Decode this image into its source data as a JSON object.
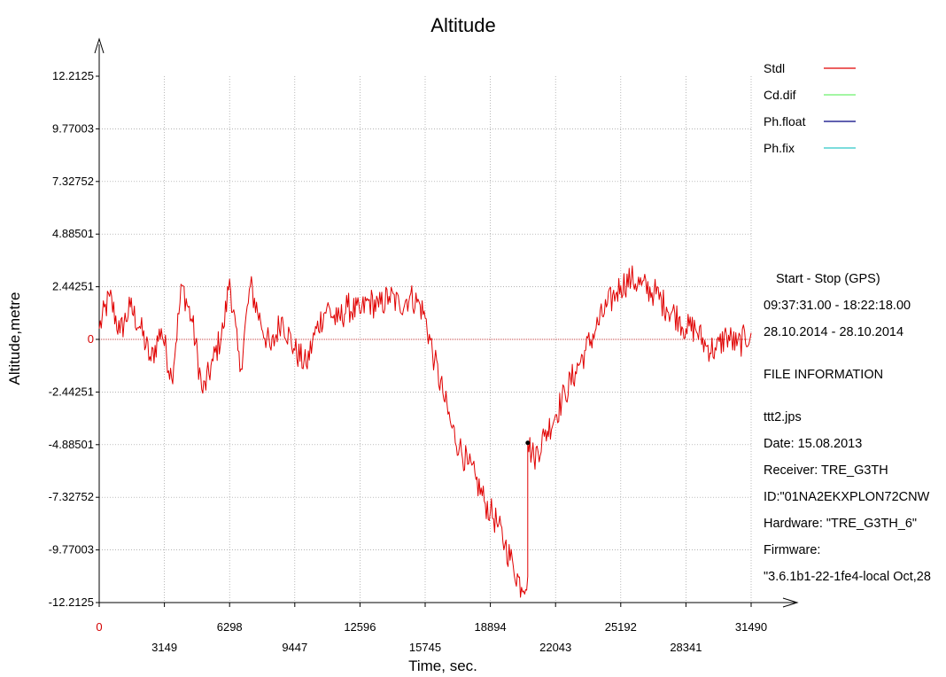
{
  "chart_data": {
    "type": "line",
    "title": "Altitude",
    "xlabel": "Time, sec.",
    "ylabel": "Altitude,metre",
    "xlim": [
      0,
      31490
    ],
    "ylim": [
      -12.2125,
      12.2125
    ],
    "x_ticks": [
      "0",
      "3149",
      "6298",
      "9447",
      "12596",
      "15745",
      "18894",
      "22043",
      "25192",
      "28341",
      "31490"
    ],
    "y_ticks": [
      "12.2125",
      "9.77003",
      "7.32752",
      "4.88501",
      "2.44251",
      "0",
      "-2.44251",
      "-4.88501",
      "-7.32752",
      "-9.77003",
      "-12.2125"
    ],
    "grid": true,
    "legend_position": "top-right",
    "legend": [
      {
        "name": "Stdl",
        "color": "#e00000"
      },
      {
        "name": "Cd.dif",
        "color": "#6cf06c"
      },
      {
        "name": "Ph.float",
        "color": "#000080"
      },
      {
        "name": "Ph.fix",
        "color": "#2fc7c7"
      }
    ],
    "series": [
      {
        "name": "Stdl",
        "color": "#e00000",
        "x": [
          0,
          500,
          1000,
          1500,
          2000,
          2500,
          3000,
          3500,
          4000,
          4500,
          5000,
          5500,
          6000,
          6298,
          6800,
          7300,
          7800,
          8300,
          8800,
          9447,
          10000,
          10500,
          11000,
          11500,
          12000,
          12596,
          13000,
          13500,
          14000,
          14500,
          15000,
          15500,
          15745,
          16200,
          16600,
          17000,
          17400,
          17800,
          18200,
          18600,
          18894,
          19200,
          19600,
          20000,
          20400,
          20700,
          20701,
          21000,
          21500,
          22043,
          22500,
          23000,
          23500,
          24000,
          24500,
          25000,
          25192,
          25700,
          26200,
          26800,
          27400,
          28000,
          28341,
          28800,
          29300,
          29800,
          30300,
          30800,
          31490
        ],
        "y": [
          0.5,
          2.0,
          0.3,
          1.5,
          0.5,
          -1.0,
          0.5,
          -1.8,
          2.5,
          0.8,
          -2.5,
          -1.0,
          0.5,
          2.8,
          -1.5,
          2.5,
          0.8,
          -0.5,
          1.0,
          -0.5,
          -1.2,
          0.5,
          1.5,
          0.8,
          1.5,
          1.2,
          1.8,
          1.5,
          2.0,
          1.6,
          2.0,
          1.6,
          1.0,
          -1.0,
          -2.5,
          -4.0,
          -5.0,
          -5.8,
          -6.5,
          -7.5,
          -8.0,
          -8.5,
          -9.5,
          -10.5,
          -11.5,
          -11.0,
          -4.8,
          -5.5,
          -4.5,
          -3.5,
          -2.5,
          -1.5,
          -0.5,
          0.5,
          1.5,
          2.2,
          2.5,
          2.8,
          2.5,
          2.2,
          1.5,
          1.0,
          0.5,
          0.5,
          -0.3,
          -0.5,
          0.2,
          -0.3,
          0.3
        ]
      }
    ],
    "marker": {
      "x": 20700,
      "y": -4.8
    }
  },
  "info": {
    "header": "Start  -  Stop  (GPS)",
    "time_range": "09:37:31.00 - 18:22:18.00",
    "date_range": "28.10.2014 - 28.10.2014",
    "file_info_title": "FILE INFORMATION",
    "file_name": "ttt2.jps",
    "date": "Date: 15.08.2013",
    "receiver": "Receiver: TRE_G3TH",
    "id": "ID:\"01NA2EKXPLON72CNW",
    "hardware": "Hardware: \"TRE_G3TH_6\"",
    "firmware_label": "Firmware:",
    "firmware_value": "\"3.6.1b1-22-1fe4-local Oct,28"
  }
}
